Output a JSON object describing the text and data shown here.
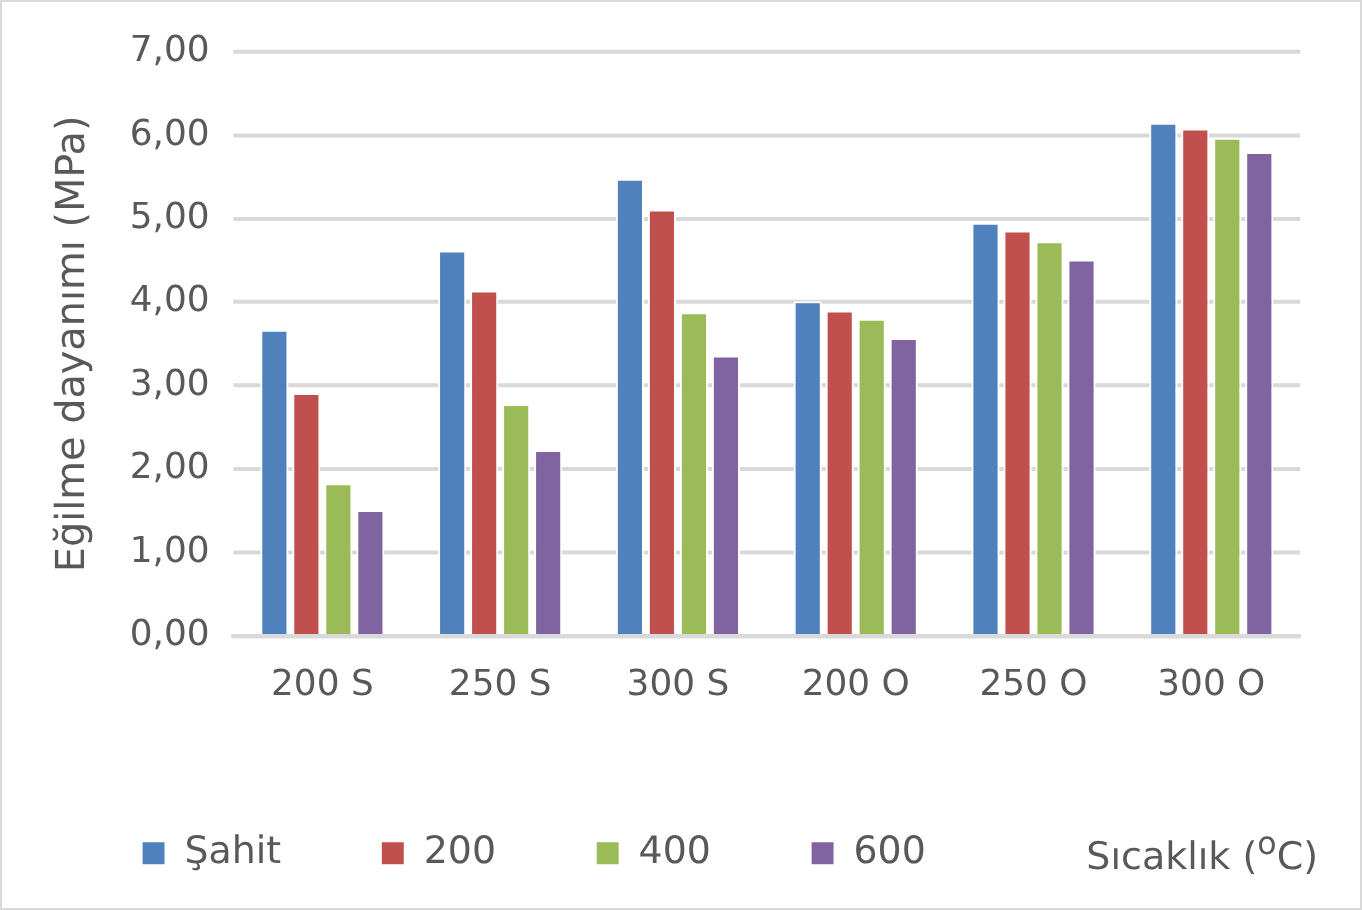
{
  "chart_data": {
    "type": "bar",
    "ylabel": "Eğilme dayanımı (MPa)",
    "xlabel": "Sıcaklık ($^{o}$C)",
    "categories": [
      "200 S",
      "250 S",
      "300 S",
      "200 O",
      "250 O",
      "300 O"
    ],
    "series": [
      {
        "name": "Şahit",
        "color": "#4f81bd",
        "values": [
          3.67,
          4.62,
          5.48,
          4.01,
          4.95,
          6.15
        ]
      },
      {
        "name": "200",
        "color": "#c0504d",
        "values": [
          2.91,
          4.14,
          5.11,
          3.9,
          4.86,
          6.08
        ]
      },
      {
        "name": "400",
        "color": "#9bbb59",
        "values": [
          1.83,
          2.78,
          3.88,
          3.8,
          4.73,
          5.97
        ]
      },
      {
        "name": "600",
        "color": "#8064a2",
        "values": [
          1.51,
          2.23,
          3.36,
          3.57,
          4.51,
          5.8
        ]
      }
    ],
    "ylim": [
      0,
      7
    ],
    "yticks": [
      {
        "value": 0,
        "label": "0,00"
      },
      {
        "value": 1,
        "label": "1,00"
      },
      {
        "value": 2,
        "label": "2,00"
      },
      {
        "value": 3,
        "label": "3,00"
      },
      {
        "value": 4,
        "label": "4,00"
      },
      {
        "value": 5,
        "label": "5,00"
      },
      {
        "value": 6,
        "label": "6,00"
      },
      {
        "value": 7,
        "label": "7,00"
      }
    ],
    "grid": "y",
    "legend": "bottom"
  }
}
